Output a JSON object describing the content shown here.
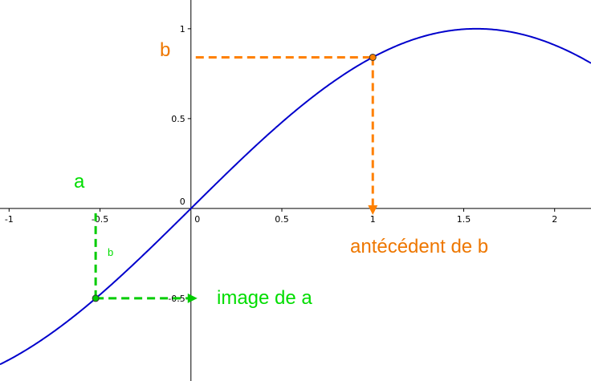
{
  "chart_data": {
    "type": "line",
    "title": "",
    "xlabel": "",
    "ylabel": "",
    "xlim": [
      -1.05,
      2.2
    ],
    "ylim": [
      -0.96,
      1.16
    ],
    "grid": false,
    "legend": "none",
    "x_ticks": [
      {
        "value": -1,
        "label": "-1"
      },
      {
        "value": -0.5,
        "label": "-0.5"
      },
      {
        "value": 0,
        "label": "0"
      },
      {
        "value": 0.5,
        "label": "0.5"
      },
      {
        "value": 1,
        "label": "1"
      },
      {
        "value": 1.5,
        "label": "1.5"
      },
      {
        "value": 2,
        "label": "2"
      }
    ],
    "y_ticks": [
      {
        "value": 1,
        "label": "1"
      },
      {
        "value": 0.5,
        "label": "0.5"
      },
      {
        "value": 0,
        "label": "0"
      },
      {
        "value": -0.5,
        "label": "-0.5"
      }
    ],
    "series": [
      {
        "function": "sin(x)",
        "color": "#0000cc"
      }
    ],
    "points": [
      {
        "x": -0.524,
        "y": -0.5,
        "color": "#00cc00"
      },
      {
        "x": 1,
        "y": 0.841,
        "color": "#ff8000"
      }
    ],
    "annotations": {
      "a": {
        "text": "a",
        "color": "#00dd00"
      },
      "b_small": {
        "text": "b",
        "color": "#00dd00"
      },
      "image_a": {
        "text": "image de a",
        "color": "#00dd00"
      },
      "b_orange": {
        "text": "b",
        "color": "#ee7700"
      },
      "antecedent": {
        "text": "antécédent de b",
        "color": "#ee7700"
      }
    }
  }
}
